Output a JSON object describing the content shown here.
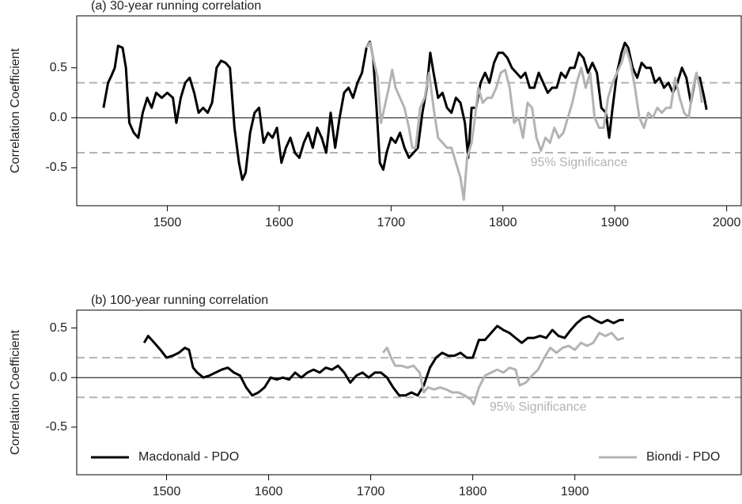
{
  "chart_data": [
    {
      "type": "line",
      "title": "(a) 30-year running correlation",
      "ylabel": "Correlation Coefficient",
      "xlim": [
        1419,
        2013
      ],
      "ylim": [
        -0.88,
        1.02
      ],
      "xticks": [
        1500,
        1600,
        1700,
        1800,
        1900,
        2000
      ],
      "yticks": [
        -0.5,
        {
          "value": 0,
          "label": "0.0"
        },
        0.5
      ],
      "reference_lines": [
        {
          "value": 0,
          "style": "solid"
        },
        {
          "value": 0.35,
          "style": "dashed"
        },
        {
          "value": -0.35,
          "style": "dashed"
        }
      ],
      "annotations": [
        {
          "text": "95% Significance",
          "x": 1868,
          "y": -0.45
        }
      ],
      "series": [
        {
          "color": "#000000",
          "x": [
            1443,
            1447,
            1450,
            1453,
            1456,
            1460,
            1463,
            1466,
            1470,
            1474,
            1478,
            1482,
            1486,
            1490,
            1495,
            1500,
            1505,
            1508,
            1512,
            1516,
            1520,
            1524,
            1528,
            1532,
            1536,
            1540,
            1544,
            1548,
            1552,
            1556,
            1560,
            1564,
            1567,
            1570,
            1574,
            1578,
            1582,
            1586,
            1590,
            1594,
            1598,
            1602,
            1606,
            1610,
            1614,
            1618,
            1622,
            1626,
            1630,
            1634,
            1638,
            1642,
            1646,
            1650,
            1654,
            1658,
            1662,
            1666,
            1670,
            1674,
            1678,
            1681,
            1684,
            1687,
            1690,
            1693,
            1696,
            1700,
            1704,
            1708,
            1712,
            1716,
            1720,
            1724,
            1728,
            1732,
            1735,
            1738,
            1742,
            1746,
            1750,
            1754,
            1758,
            1762,
            1766,
            1769,
            1772,
            1776,
            1780,
            1784,
            1788,
            1792,
            1796,
            1800,
            1804,
            1808,
            1812,
            1816,
            1820,
            1824,
            1828,
            1832,
            1836,
            1840,
            1844,
            1848,
            1852,
            1856,
            1860,
            1864,
            1868,
            1872,
            1876,
            1880,
            1884,
            1888,
            1892,
            1895,
            1898,
            1902,
            1906,
            1909,
            1912,
            1916,
            1920,
            1924,
            1928,
            1932,
            1936,
            1940,
            1944,
            1948,
            1952,
            1956,
            1960,
            1964,
            1968,
            1972,
            1976,
            1980,
            1982
          ],
          "values": [
            0.1,
            0.35,
            0.42,
            0.5,
            0.72,
            0.7,
            0.5,
            -0.05,
            -0.15,
            -0.2,
            0.05,
            0.2,
            0.1,
            0.25,
            0.2,
            0.25,
            0.2,
            -0.05,
            0.2,
            0.35,
            0.4,
            0.25,
            0.05,
            0.1,
            0.05,
            0.15,
            0.5,
            0.57,
            0.55,
            0.5,
            -0.1,
            -0.45,
            -0.62,
            -0.55,
            -0.15,
            0.05,
            0.1,
            -0.25,
            -0.15,
            -0.2,
            -0.1,
            -0.45,
            -0.3,
            -0.2,
            -0.35,
            -0.4,
            -0.25,
            -0.15,
            -0.3,
            -0.1,
            -0.2,
            -0.35,
            0.05,
            -0.3,
            0.0,
            0.25,
            0.3,
            0.2,
            0.35,
            0.45,
            0.7,
            0.76,
            0.6,
            0.1,
            -0.45,
            -0.52,
            -0.35,
            -0.2,
            -0.25,
            -0.15,
            -0.3,
            -0.4,
            -0.35,
            -0.3,
            0.05,
            0.3,
            0.65,
            0.45,
            0.2,
            0.25,
            0.1,
            0.05,
            0.2,
            0.15,
            -0.05,
            -0.4,
            0.1,
            0.1,
            0.35,
            0.45,
            0.35,
            0.55,
            0.65,
            0.65,
            0.6,
            0.5,
            0.45,
            0.4,
            0.45,
            0.3,
            0.3,
            0.45,
            0.35,
            0.25,
            0.3,
            0.3,
            0.45,
            0.4,
            0.5,
            0.5,
            0.65,
            0.6,
            0.45,
            0.55,
            0.45,
            0.1,
            0.05,
            -0.2,
            0.1,
            0.45,
            0.65,
            0.75,
            0.7,
            0.5,
            0.4,
            0.55,
            0.5,
            0.5,
            0.35,
            0.4,
            0.3,
            0.35,
            0.25,
            0.35,
            0.5,
            0.4,
            0.15,
            0.4,
            0.4,
            0.2,
            0.08
          ]
        },
        {
          "color": "#b3b3b3",
          "x": [
            1678,
            1681,
            1684,
            1688,
            1691,
            1694,
            1698,
            1701,
            1704,
            1708,
            1712,
            1716,
            1719,
            1722,
            1726,
            1730,
            1734,
            1738,
            1742,
            1746,
            1750,
            1754,
            1758,
            1762,
            1765,
            1768,
            1772,
            1775,
            1778,
            1782,
            1786,
            1790,
            1794,
            1798,
            1802,
            1806,
            1810,
            1814,
            1818,
            1822,
            1826,
            1830,
            1834,
            1838,
            1842,
            1846,
            1850,
            1854,
            1858,
            1862,
            1866,
            1870,
            1874,
            1878,
            1882,
            1886,
            1890,
            1894,
            1898,
            1902,
            1906,
            1910,
            1914,
            1918,
            1922,
            1926,
            1930,
            1934,
            1938,
            1942,
            1946,
            1950,
            1954,
            1958,
            1962,
            1966,
            1970,
            1973,
            1976,
            1978
          ],
          "values": [
            0.7,
            0.75,
            0.6,
            0.4,
            -0.05,
            0.1,
            0.3,
            0.48,
            0.3,
            0.2,
            0.1,
            -0.1,
            -0.3,
            -0.3,
            0.1,
            0.2,
            0.45,
            0.1,
            -0.2,
            -0.25,
            -0.3,
            -0.3,
            -0.45,
            -0.6,
            -0.82,
            -0.4,
            -0.25,
            0.0,
            0.3,
            0.15,
            0.2,
            0.2,
            0.3,
            0.45,
            0.48,
            0.3,
            -0.05,
            0.0,
            -0.2,
            0.15,
            0.1,
            -0.2,
            -0.33,
            -0.2,
            -0.25,
            -0.1,
            -0.2,
            -0.15,
            0.0,
            0.15,
            0.35,
            0.5,
            0.3,
            0.45,
            0.0,
            -0.1,
            -0.1,
            0.2,
            0.35,
            0.45,
            0.55,
            0.7,
            0.55,
            0.3,
            0.0,
            -0.1,
            0.05,
            0.0,
            0.1,
            0.05,
            0.1,
            0.1,
            0.4,
            0.2,
            0.05,
            0.0,
            0.3,
            0.45,
            0.3,
            0.15
          ]
        }
      ]
    },
    {
      "type": "line",
      "title": "(b) 100-year running correlation",
      "ylabel": "Correlation Coefficient",
      "xlim": [
        1412,
        2063
      ],
      "ylim": [
        -0.98,
        0.68
      ],
      "xticks": [
        1500,
        1600,
        1700,
        1800,
        1900
      ],
      "yticks": [
        -0.5,
        {
          "value": 0,
          "label": "0.0"
        },
        0.5
      ],
      "reference_lines": [
        {
          "value": 0,
          "style": "solid"
        },
        {
          "value": 0.2,
          "style": "dashed"
        },
        {
          "value": -0.2,
          "style": "dashed"
        }
      ],
      "annotations": [
        {
          "text": "95% Significance",
          "x": 1864,
          "y": -0.3
        }
      ],
      "legend": "bottom",
      "series": [
        {
          "name": "Macdonald - PDO",
          "color": "#000000",
          "x": [
            1478,
            1482,
            1488,
            1494,
            1500,
            1506,
            1512,
            1518,
            1522,
            1526,
            1530,
            1536,
            1542,
            1548,
            1554,
            1560,
            1566,
            1572,
            1578,
            1584,
            1590,
            1596,
            1602,
            1608,
            1614,
            1620,
            1626,
            1632,
            1638,
            1644,
            1650,
            1656,
            1662,
            1668,
            1674,
            1680,
            1686,
            1692,
            1698,
            1704,
            1710,
            1716,
            1722,
            1728,
            1734,
            1740,
            1746,
            1752,
            1758,
            1764,
            1770,
            1776,
            1782,
            1788,
            1794,
            1800,
            1806,
            1812,
            1818,
            1824,
            1830,
            1836,
            1842,
            1848,
            1854,
            1860,
            1866,
            1872,
            1878,
            1884,
            1890,
            1896,
            1902,
            1908,
            1914,
            1920,
            1926,
            1932,
            1938,
            1944,
            1948
          ],
          "values": [
            0.35,
            0.42,
            0.35,
            0.28,
            0.2,
            0.22,
            0.25,
            0.3,
            0.28,
            0.1,
            0.05,
            0.0,
            0.02,
            0.05,
            0.08,
            0.1,
            0.05,
            0.02,
            -0.1,
            -0.18,
            -0.15,
            -0.1,
            0.0,
            -0.02,
            0.0,
            -0.02,
            0.05,
            0.0,
            0.05,
            0.08,
            0.05,
            0.1,
            0.08,
            0.12,
            0.05,
            -0.05,
            0.02,
            0.05,
            0.0,
            0.05,
            0.05,
            0.0,
            -0.1,
            -0.18,
            -0.18,
            -0.15,
            -0.18,
            -0.08,
            0.1,
            0.2,
            0.25,
            0.22,
            0.22,
            0.25,
            0.2,
            0.2,
            0.38,
            0.38,
            0.45,
            0.52,
            0.48,
            0.45,
            0.4,
            0.35,
            0.4,
            0.4,
            0.42,
            0.4,
            0.48,
            0.42,
            0.4,
            0.48,
            0.55,
            0.6,
            0.62,
            0.58,
            0.55,
            0.58,
            0.55,
            0.58,
            0.58
          ]
        },
        {
          "name": "Biondi - PDO",
          "color": "#b3b3b3",
          "x": [
            1712,
            1716,
            1720,
            1724,
            1730,
            1736,
            1742,
            1748,
            1752,
            1756,
            1762,
            1768,
            1774,
            1780,
            1786,
            1792,
            1798,
            1801,
            1806,
            1812,
            1818,
            1824,
            1830,
            1836,
            1842,
            1846,
            1852,
            1858,
            1864,
            1870,
            1876,
            1882,
            1888,
            1894,
            1900,
            1906,
            1912,
            1918,
            1924,
            1930,
            1936,
            1942,
            1948
          ],
          "values": [
            0.25,
            0.3,
            0.2,
            0.12,
            0.12,
            0.1,
            0.12,
            0.05,
            -0.15,
            -0.1,
            -0.12,
            -0.1,
            -0.12,
            -0.15,
            -0.15,
            -0.18,
            -0.22,
            -0.27,
            -0.1,
            0.02,
            0.05,
            0.08,
            0.05,
            0.1,
            0.08,
            -0.08,
            -0.05,
            0.02,
            0.08,
            0.2,
            0.3,
            0.25,
            0.3,
            0.32,
            0.28,
            0.35,
            0.32,
            0.35,
            0.45,
            0.42,
            0.45,
            0.38,
            0.4
          ]
        }
      ]
    }
  ]
}
